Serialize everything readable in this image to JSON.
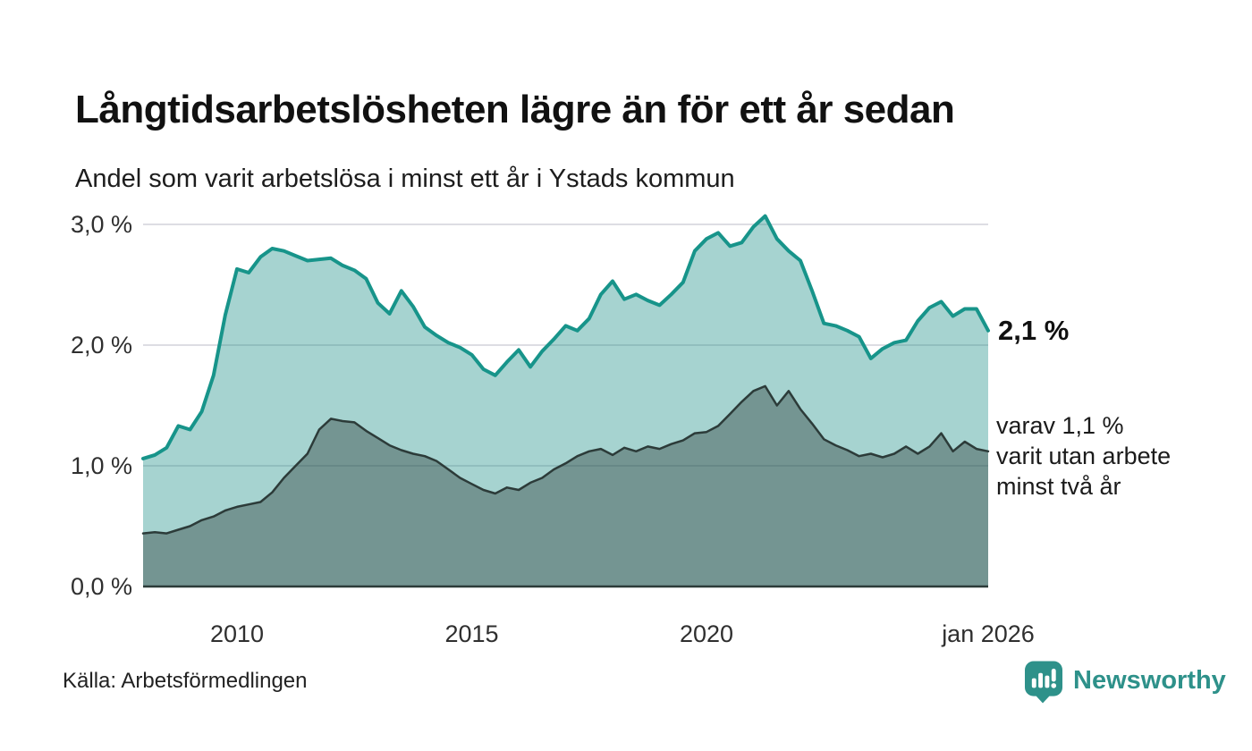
{
  "header": {
    "title": "Långtidsarbetslösheten lägre än för ett år sedan",
    "subtitle": "Andel som varit arbetslösa i minst ett år i Ystads kommun"
  },
  "annotations": {
    "total_end_label": "2,1 %",
    "subset_end_label": "varav 1,1 %\nvarit utan arbete\nminst två år"
  },
  "footer": {
    "source": "Källa: Arbetsförmedlingen",
    "brand": "Newsworthy"
  },
  "colors": {
    "background": "#ffffff",
    "title_text": "#111111",
    "grid": "#dddde3",
    "tick_text": "#2f2f2f",
    "series_total_stroke": "#17948a",
    "series_total_fill": "rgba(20,140,132,0.38)",
    "series_subset_stroke": "#2c3b39",
    "series_subset_fill": "rgba(33,47,45,0.38)",
    "baseline": "#2c3b39",
    "brand_teal": "#2e918a"
  },
  "chart_data": {
    "type": "area",
    "title": "Långtidsarbetslösheten lägre än för ett år sedan",
    "subtitle": "Andel som varit arbetslösa i minst ett år i Ystads kommun",
    "x_unit": "decimal year (monthly series Jan 2008 – Jan 2026, estimated quarterly)",
    "xlim": [
      2008,
      2026
    ],
    "ylim": [
      0,
      3.0
    ],
    "grid": true,
    "legend": "none (direct labels at line ends)",
    "y_ticks": {
      "values": [
        0,
        1,
        2,
        3
      ],
      "labels": [
        "0,0 %",
        "1,0 %",
        "2,0 %",
        "3,0 %"
      ]
    },
    "x_ticks": {
      "values": [
        2010,
        2015,
        2020,
        2026
      ],
      "labels": [
        "2010",
        "2015",
        "2020",
        "jan 2026"
      ]
    },
    "x": [
      2008.0,
      2008.25,
      2008.5,
      2008.75,
      2009.0,
      2009.25,
      2009.5,
      2009.75,
      2010.0,
      2010.25,
      2010.5,
      2010.75,
      2011.0,
      2011.25,
      2011.5,
      2011.75,
      2012.0,
      2012.25,
      2012.5,
      2012.75,
      2013.0,
      2013.25,
      2013.5,
      2013.75,
      2014.0,
      2014.25,
      2014.5,
      2014.75,
      2015.0,
      2015.25,
      2015.5,
      2015.75,
      2016.0,
      2016.25,
      2016.5,
      2016.75,
      2017.0,
      2017.25,
      2017.5,
      2017.75,
      2018.0,
      2018.25,
      2018.5,
      2018.75,
      2019.0,
      2019.25,
      2019.5,
      2019.75,
      2020.0,
      2020.25,
      2020.5,
      2020.75,
      2021.0,
      2021.25,
      2021.5,
      2021.75,
      2022.0,
      2022.25,
      2022.5,
      2022.75,
      2023.0,
      2023.25,
      2023.5,
      2023.75,
      2024.0,
      2024.25,
      2024.5,
      2024.75,
      2025.0,
      2025.25,
      2025.5,
      2025.75,
      2026.0
    ],
    "series": [
      {
        "name": "Arbetslösa minst ett år",
        "end_value_label": "2,1 %",
        "stroke": "#17948a",
        "stroke_width": 4,
        "fill": "rgba(20,140,132,0.38)",
        "values": [
          1.06,
          1.09,
          1.15,
          1.33,
          1.3,
          1.45,
          1.75,
          2.25,
          2.63,
          2.6,
          2.73,
          2.8,
          2.78,
          2.74,
          2.7,
          2.71,
          2.72,
          2.66,
          2.62,
          2.55,
          2.35,
          2.26,
          2.45,
          2.32,
          2.15,
          2.08,
          2.02,
          1.98,
          1.92,
          1.8,
          1.75,
          1.86,
          1.96,
          1.82,
          1.95,
          2.05,
          2.16,
          2.12,
          2.22,
          2.42,
          2.53,
          2.38,
          2.42,
          2.37,
          2.33,
          2.42,
          2.52,
          2.78,
          2.88,
          2.93,
          2.82,
          2.85,
          2.98,
          3.07,
          2.88,
          2.78,
          2.7,
          2.45,
          2.18,
          2.16,
          2.12,
          2.07,
          1.89,
          1.97,
          2.02,
          2.04,
          2.2,
          2.31,
          2.36,
          2.24,
          2.3,
          2.3,
          2.12
        ]
      },
      {
        "name": "Varav utan arbete minst två år",
        "end_value_label": "varav 1,1 %",
        "stroke": "#2c3b39",
        "stroke_width": 2.5,
        "fill": "rgba(33,47,45,0.38)",
        "values": [
          0.44,
          0.45,
          0.44,
          0.47,
          0.5,
          0.55,
          0.58,
          0.63,
          0.66,
          0.68,
          0.7,
          0.78,
          0.9,
          1.0,
          1.1,
          1.3,
          1.39,
          1.37,
          1.36,
          1.29,
          1.23,
          1.17,
          1.13,
          1.1,
          1.08,
          1.04,
          0.97,
          0.9,
          0.85,
          0.8,
          0.77,
          0.82,
          0.8,
          0.86,
          0.9,
          0.97,
          1.02,
          1.08,
          1.12,
          1.14,
          1.09,
          1.15,
          1.12,
          1.16,
          1.14,
          1.18,
          1.21,
          1.27,
          1.28,
          1.33,
          1.43,
          1.53,
          1.62,
          1.66,
          1.5,
          1.62,
          1.47,
          1.35,
          1.22,
          1.17,
          1.13,
          1.08,
          1.1,
          1.07,
          1.1,
          1.16,
          1.1,
          1.16,
          1.27,
          1.12,
          1.2,
          1.14,
          1.12
        ]
      }
    ]
  }
}
